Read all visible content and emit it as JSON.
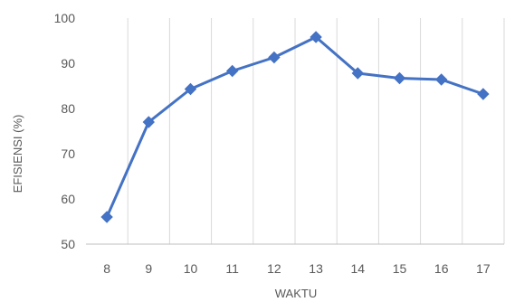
{
  "chart_data": {
    "type": "line",
    "xlabel": "WAKTU",
    "ylabel": "EFISIENSI (%)",
    "x": [
      8,
      9,
      10,
      11,
      12,
      13,
      14,
      15,
      16,
      17
    ],
    "x_tick_labels": [
      "8",
      "9",
      "10",
      "11",
      "12",
      "13",
      "14",
      "15",
      "16",
      "17"
    ],
    "series": [
      {
        "values": [
          56,
          77,
          84.3,
          88.3,
          91.3,
          95.8,
          87.8,
          86.7,
          86.4,
          83.2
        ]
      }
    ],
    "ylim": [
      50,
      100
    ],
    "y_ticks": [
      50,
      60,
      70,
      80,
      90,
      100
    ],
    "y_tick_labels": [
      "50",
      "60",
      "70",
      "80",
      "90",
      "100"
    ],
    "grid": "vertical",
    "legend": "none",
    "marker": "diamond",
    "colors": {
      "line": "#4472C4",
      "grid": "#D9D9D9",
      "axis": "#BFBFBF",
      "text": "#595959"
    }
  }
}
